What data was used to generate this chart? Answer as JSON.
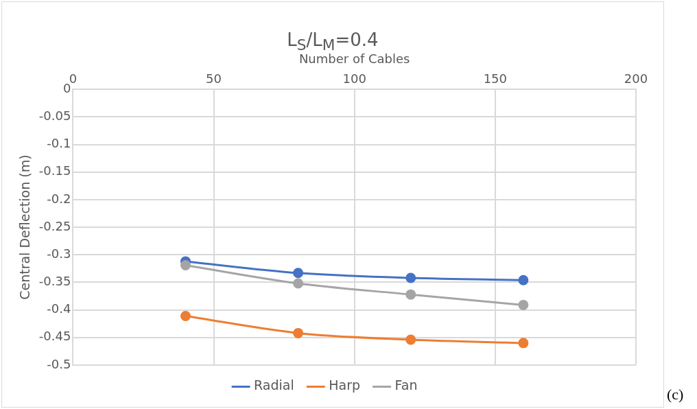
{
  "chart_data": {
    "type": "line",
    "title": "L$_{S}$/L$_{M}$=0.4",
    "xlabel": "Number of Cables",
    "ylabel": "Central Deflection (m)",
    "x": [
      40,
      80,
      120,
      160
    ],
    "series": [
      {
        "name": "Radial",
        "color": "#4472c4",
        "values": [
          -0.312,
          -0.333,
          -0.342,
          -0.346
        ]
      },
      {
        "name": "Harp",
        "color": "#ed7d31",
        "values": [
          -0.411,
          -0.442,
          -0.454,
          -0.46
        ]
      },
      {
        "name": "Fan",
        "color": "#a5a5a5",
        "values": [
          -0.319,
          -0.352,
          -0.372,
          -0.391
        ]
      }
    ],
    "xlim": [
      0,
      200
    ],
    "xticks": [
      0,
      50,
      100,
      150,
      200
    ],
    "ylim": [
      -0.5,
      0
    ],
    "yticks": [
      0,
      -0.05,
      -0.1,
      -0.15,
      -0.2,
      -0.25,
      -0.3,
      -0.35,
      -0.4,
      -0.45,
      -0.5
    ],
    "grid": true,
    "legend": "bottom",
    "marker": "circle",
    "line_style": "solid",
    "annotations": [
      "(c)"
    ]
  }
}
